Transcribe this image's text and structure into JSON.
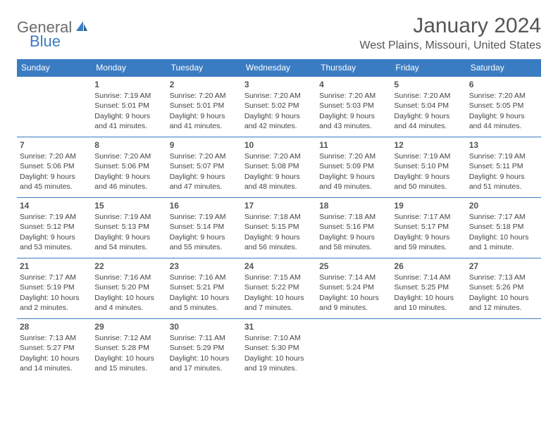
{
  "logo": {
    "part1": "General",
    "part2": "Blue"
  },
  "title": "January 2024",
  "location": "West Plains, Missouri, United States",
  "header_bg": "#3a7cc2",
  "header_fg": "#ffffff",
  "border_color": "#3a7cc2",
  "weekdays": [
    "Sunday",
    "Monday",
    "Tuesday",
    "Wednesday",
    "Thursday",
    "Friday",
    "Saturday"
  ],
  "weeks": [
    [
      null,
      {
        "d": "1",
        "sr": "7:19 AM",
        "ss": "5:01 PM",
        "dl": "9 hours and 41 minutes."
      },
      {
        "d": "2",
        "sr": "7:20 AM",
        "ss": "5:01 PM",
        "dl": "9 hours and 41 minutes."
      },
      {
        "d": "3",
        "sr": "7:20 AM",
        "ss": "5:02 PM",
        "dl": "9 hours and 42 minutes."
      },
      {
        "d": "4",
        "sr": "7:20 AM",
        "ss": "5:03 PM",
        "dl": "9 hours and 43 minutes."
      },
      {
        "d": "5",
        "sr": "7:20 AM",
        "ss": "5:04 PM",
        "dl": "9 hours and 44 minutes."
      },
      {
        "d": "6",
        "sr": "7:20 AM",
        "ss": "5:05 PM",
        "dl": "9 hours and 44 minutes."
      }
    ],
    [
      {
        "d": "7",
        "sr": "7:20 AM",
        "ss": "5:06 PM",
        "dl": "9 hours and 45 minutes."
      },
      {
        "d": "8",
        "sr": "7:20 AM",
        "ss": "5:06 PM",
        "dl": "9 hours and 46 minutes."
      },
      {
        "d": "9",
        "sr": "7:20 AM",
        "ss": "5:07 PM",
        "dl": "9 hours and 47 minutes."
      },
      {
        "d": "10",
        "sr": "7:20 AM",
        "ss": "5:08 PM",
        "dl": "9 hours and 48 minutes."
      },
      {
        "d": "11",
        "sr": "7:20 AM",
        "ss": "5:09 PM",
        "dl": "9 hours and 49 minutes."
      },
      {
        "d": "12",
        "sr": "7:19 AM",
        "ss": "5:10 PM",
        "dl": "9 hours and 50 minutes."
      },
      {
        "d": "13",
        "sr": "7:19 AM",
        "ss": "5:11 PM",
        "dl": "9 hours and 51 minutes."
      }
    ],
    [
      {
        "d": "14",
        "sr": "7:19 AM",
        "ss": "5:12 PM",
        "dl": "9 hours and 53 minutes."
      },
      {
        "d": "15",
        "sr": "7:19 AM",
        "ss": "5:13 PM",
        "dl": "9 hours and 54 minutes."
      },
      {
        "d": "16",
        "sr": "7:19 AM",
        "ss": "5:14 PM",
        "dl": "9 hours and 55 minutes."
      },
      {
        "d": "17",
        "sr": "7:18 AM",
        "ss": "5:15 PM",
        "dl": "9 hours and 56 minutes."
      },
      {
        "d": "18",
        "sr": "7:18 AM",
        "ss": "5:16 PM",
        "dl": "9 hours and 58 minutes."
      },
      {
        "d": "19",
        "sr": "7:17 AM",
        "ss": "5:17 PM",
        "dl": "9 hours and 59 minutes."
      },
      {
        "d": "20",
        "sr": "7:17 AM",
        "ss": "5:18 PM",
        "dl": "10 hours and 1 minute."
      }
    ],
    [
      {
        "d": "21",
        "sr": "7:17 AM",
        "ss": "5:19 PM",
        "dl": "10 hours and 2 minutes."
      },
      {
        "d": "22",
        "sr": "7:16 AM",
        "ss": "5:20 PM",
        "dl": "10 hours and 4 minutes."
      },
      {
        "d": "23",
        "sr": "7:16 AM",
        "ss": "5:21 PM",
        "dl": "10 hours and 5 minutes."
      },
      {
        "d": "24",
        "sr": "7:15 AM",
        "ss": "5:22 PM",
        "dl": "10 hours and 7 minutes."
      },
      {
        "d": "25",
        "sr": "7:14 AM",
        "ss": "5:24 PM",
        "dl": "10 hours and 9 minutes."
      },
      {
        "d": "26",
        "sr": "7:14 AM",
        "ss": "5:25 PM",
        "dl": "10 hours and 10 minutes."
      },
      {
        "d": "27",
        "sr": "7:13 AM",
        "ss": "5:26 PM",
        "dl": "10 hours and 12 minutes."
      }
    ],
    [
      {
        "d": "28",
        "sr": "7:13 AM",
        "ss": "5:27 PM",
        "dl": "10 hours and 14 minutes."
      },
      {
        "d": "29",
        "sr": "7:12 AM",
        "ss": "5:28 PM",
        "dl": "10 hours and 15 minutes."
      },
      {
        "d": "30",
        "sr": "7:11 AM",
        "ss": "5:29 PM",
        "dl": "10 hours and 17 minutes."
      },
      {
        "d": "31",
        "sr": "7:10 AM",
        "ss": "5:30 PM",
        "dl": "10 hours and 19 minutes."
      },
      null,
      null,
      null
    ]
  ],
  "labels": {
    "sunrise": "Sunrise:",
    "sunset": "Sunset:",
    "daylight": "Daylight:"
  }
}
